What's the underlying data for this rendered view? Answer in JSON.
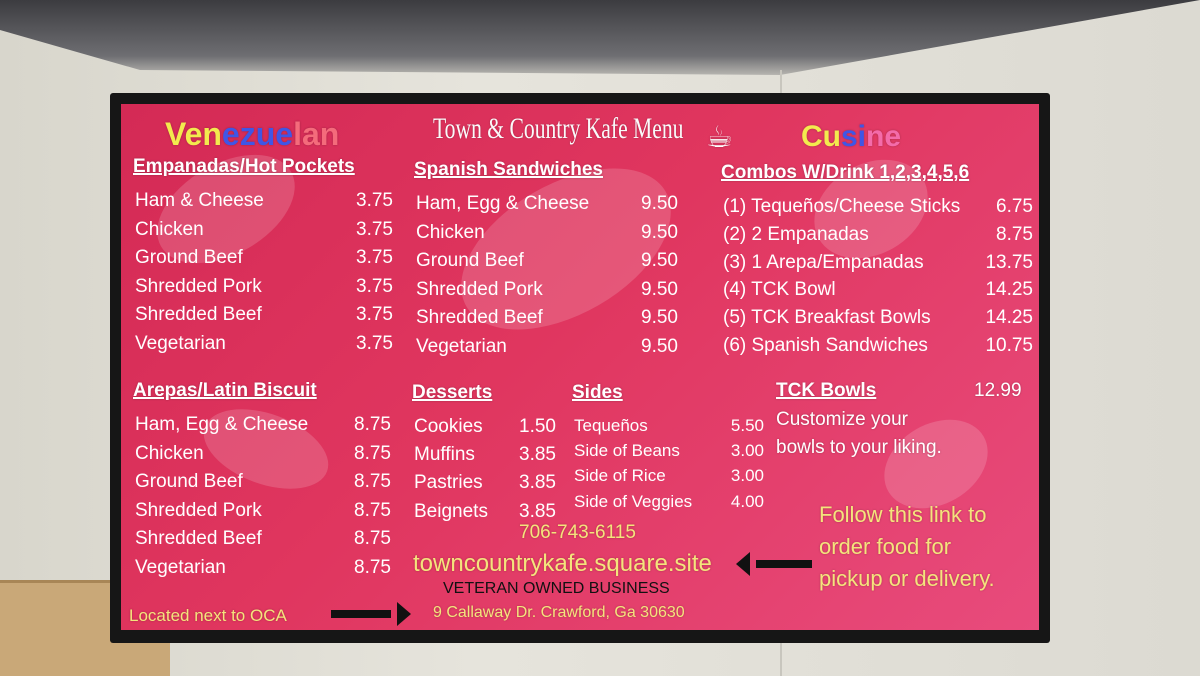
{
  "title": "Town & Country Kafe Menu",
  "venezuelan": [
    {
      "t": "Ven",
      "c": "#f3ea4e"
    },
    {
      "t": "ezue",
      "c": "#3f56e6"
    },
    {
      "t": "lan",
      "c": "#f46b7b"
    }
  ],
  "cusine": [
    {
      "t": "Cu",
      "c": "#f3ea4e"
    },
    {
      "t": "si",
      "c": "#3f56e6"
    },
    {
      "t": "ne",
      "c": "#f46baa"
    }
  ],
  "empanadas": {
    "heading": "Empanadas/Hot Pockets",
    "items": [
      [
        "Ham & Cheese",
        "3.75"
      ],
      [
        "Chicken",
        "3.75"
      ],
      [
        "Ground Beef",
        "3.75"
      ],
      [
        "Shredded Pork",
        "3.75"
      ],
      [
        "Shredded Beef",
        "3.75"
      ],
      [
        "Vegetarian",
        "3.75"
      ]
    ]
  },
  "sandwiches": {
    "heading": "Spanish Sandwiches",
    "items": [
      [
        "Ham, Egg & Cheese",
        "9.50"
      ],
      [
        "Chicken",
        "9.50"
      ],
      [
        "Ground Beef",
        "9.50"
      ],
      [
        "Shredded Pork",
        "9.50"
      ],
      [
        "Shredded Beef",
        "9.50"
      ],
      [
        "Vegetarian",
        "9.50"
      ]
    ]
  },
  "combos": {
    "heading": "Combos W/Drink 1,2,3,4,5,6",
    "items": [
      [
        "(1) Tequeños/Cheese Sticks",
        "6.75"
      ],
      [
        "(2) 2 Empanadas",
        "8.75"
      ],
      [
        "(3) 1 Arepa/Empanadas",
        "13.75"
      ],
      [
        "(4) TCK Bowl",
        "14.25"
      ],
      [
        "(5) TCK Breakfast Bowls",
        "14.25"
      ],
      [
        "(6) Spanish Sandwiches",
        "10.75"
      ]
    ]
  },
  "arepas": {
    "heading": "Arepas/Latin Biscuit",
    "items": [
      [
        "Ham, Egg & Cheese",
        "8.75"
      ],
      [
        "Chicken",
        "8.75"
      ],
      [
        "Ground Beef",
        "8.75"
      ],
      [
        "Shredded Pork",
        "8.75"
      ],
      [
        "Shredded Beef",
        "8.75"
      ],
      [
        "Vegetarian",
        "8.75"
      ]
    ]
  },
  "desserts": {
    "heading": "Desserts",
    "items": [
      [
        "Cookies",
        "1.50"
      ],
      [
        "Muffins",
        "3.85"
      ],
      [
        "Pastries",
        "3.85"
      ],
      [
        "Beignets",
        "3.85"
      ]
    ]
  },
  "sides": {
    "heading": "Sides",
    "items": [
      [
        "Tequeños",
        "5.50"
      ],
      [
        "Side of Beans",
        "3.00"
      ],
      [
        "Side of Rice",
        "3.00"
      ],
      [
        "Side of Veggies",
        "4.00"
      ]
    ]
  },
  "bowls": {
    "heading": "TCK Bowls",
    "price": "12.99",
    "line1": "Customize your",
    "line2": "bowls to your liking."
  },
  "phone": "706-743-6115",
  "site": "towncountrykafe.square.site",
  "follow": [
    "Follow this link to",
    "order food for",
    "pickup or delivery."
  ],
  "veteran": "VETERAN OWNED BUSINESS",
  "located": "Located next to OCA",
  "address": "9 Callaway Dr. Crawford, Ga 30630",
  "colors": {
    "screen": "#e0365f",
    "yellow": "#f4e47c"
  }
}
